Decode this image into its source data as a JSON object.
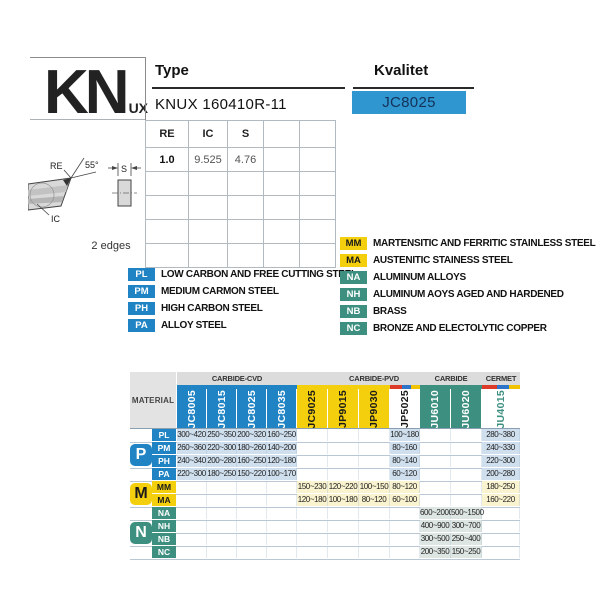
{
  "header": {
    "logo": "KN",
    "logo_sub": "UX",
    "type_label": "Type",
    "type_value": "KNUX 160410R-11",
    "kvalitet_label": "Kvalitet",
    "kvalitet_value": "JC8025"
  },
  "diagram": {
    "re_label": "RE",
    "angle_label": "55°",
    "s_label": "S",
    "ic_label": "IC",
    "edges_label": "2 edges"
  },
  "spec_table": {
    "headers": [
      "RE",
      "IC",
      "S",
      "",
      ""
    ],
    "values": [
      "1.0",
      "9.525",
      "4.76",
      "",
      ""
    ]
  },
  "legend_left": [
    {
      "code": "PL",
      "color": "blue",
      "fg": "#ffffff",
      "label": "LOW CARBON AND FREE CUTTING STEEL"
    },
    {
      "code": "PM",
      "color": "blue",
      "fg": "#ffffff",
      "label": "MEDIUM CARMON STEEL"
    },
    {
      "code": "PH",
      "color": "blue",
      "fg": "#ffffff",
      "label": "HIGH CARBON STEEL"
    },
    {
      "code": "PA",
      "color": "blue",
      "fg": "#ffffff",
      "label": "ALLOY STEEL"
    }
  ],
  "legend_right": [
    {
      "code": "MM",
      "color": "yellow",
      "fg": "#1a1a1a",
      "label": "MARTENSITIC AND FERRITIC STAINLESS STEEL"
    },
    {
      "code": "MA",
      "color": "yellow",
      "fg": "#1a1a1a",
      "label": "AUSTENITIC STAINESS STEEL"
    },
    {
      "code": "NA",
      "color": "teal",
      "fg": "#ffffff",
      "label": "ALUMINUM ALLOYS"
    },
    {
      "code": "NH",
      "color": "teal",
      "fg": "#ffffff",
      "label": "ALUMINUM AOYS AGED AND HARDENED"
    },
    {
      "code": "NB",
      "color": "teal",
      "fg": "#ffffff",
      "label": "BRASS"
    },
    {
      "code": "NC",
      "color": "teal",
      "fg": "#ffffff",
      "label": "BRONZE AND ELECTOLYTIC COPPER"
    }
  ],
  "colors": {
    "blue": "#1f83c4",
    "box_blue": "#2f96cf",
    "kvalitet_text": "#15325a",
    "yellow": "#f3cf0e",
    "teal": "#3d9080",
    "pale_blue": "#cfdfee",
    "pale_yellow": "#faf3cf",
    "pale_teal": "#dde6e3",
    "band_gray": "#dcdcdc",
    "material_gray": "#e3e3e3",
    "stripe_red": "#dd3b2a",
    "stripe_blue": "#2e74c9",
    "stripe_yellow": "#f2c300",
    "grid": "#b9c8d4"
  },
  "main_table": {
    "material_label": "MATERIAL",
    "bands": [
      {
        "label": "CARBIDE-CVD",
        "from": 0,
        "to": 3
      },
      {
        "label": "CARBIDE-PVD",
        "from": 5,
        "to": 7
      },
      {
        "label": "CARBIDE",
        "from": 8,
        "to": 9
      },
      {
        "label": "CERMET",
        "from": 10,
        "to": 10
      }
    ],
    "columns": [
      {
        "name": "JC8005",
        "bg": "blue",
        "fg": "#ffffff",
        "stripe": "blue"
      },
      {
        "name": "JC8015",
        "bg": "blue",
        "fg": "#ffffff",
        "stripe": "blue"
      },
      {
        "name": "JC8025",
        "bg": "blue",
        "fg": "#ffffff",
        "stripe": "blue"
      },
      {
        "name": "JC8035",
        "bg": "blue",
        "fg": "#ffffff",
        "stripe": "blue"
      },
      {
        "name": "JC9025",
        "bg": "yellow",
        "fg": "#1a1a1a",
        "stripe": "yellow"
      },
      {
        "name": "JP9015",
        "bg": "yellow",
        "fg": "#1a1a1a",
        "stripe": "yellow"
      },
      {
        "name": "JP9030",
        "bg": "yellow",
        "fg": "#1a1a1a",
        "stripe": "yellow"
      },
      {
        "name": "JP5025",
        "bg": "white",
        "fg": "#1a1a1a",
        "stripe": "rgb"
      },
      {
        "name": "JU6010",
        "bg": "teal",
        "fg": "#ffffff",
        "stripe": "teal"
      },
      {
        "name": "JU6020",
        "bg": "teal",
        "fg": "#ffffff",
        "stripe": "teal"
      },
      {
        "name": "JU4015",
        "bg": "white",
        "fg": "teal",
        "stripe": "rgb"
      }
    ],
    "row_groups": [
      {
        "letter": "P",
        "color": "blue",
        "fg": "#ffffff"
      },
      {
        "letter": "M",
        "color": "yellow",
        "fg": "#1a1a1a"
      },
      {
        "letter": "N",
        "color": "teal",
        "fg": "#ffffff"
      }
    ],
    "rows": [
      {
        "code": "PL",
        "group": "P",
        "values": [
          "300~420",
          "250~350",
          "200~320",
          "160~250",
          "",
          "",
          "",
          "100~180",
          "",
          "",
          "280~380"
        ]
      },
      {
        "code": "PM",
        "group": "P",
        "values": [
          "260~360",
          "220~300",
          "180~260",
          "140~200",
          "",
          "",
          "",
          "80~160",
          "",
          "",
          "240~330"
        ]
      },
      {
        "code": "PH",
        "group": "P",
        "values": [
          "240~340",
          "200~280",
          "160~250",
          "120~180",
          "",
          "",
          "",
          "80~140",
          "",
          "",
          "220~300"
        ]
      },
      {
        "code": "PA",
        "group": "P",
        "values": [
          "220~300",
          "180~250",
          "150~220",
          "100~170",
          "",
          "",
          "",
          "60~120",
          "",
          "",
          "200~280"
        ]
      },
      {
        "code": "MM",
        "group": "M",
        "values": [
          "",
          "",
          "",
          "",
          "150~230",
          "120~220",
          "100~150",
          "80~120",
          "",
          "",
          "180~250"
        ]
      },
      {
        "code": "MA",
        "group": "M",
        "values": [
          "",
          "",
          "",
          "",
          "120~180",
          "100~180",
          "80~120",
          "60~100",
          "",
          "",
          "160~220"
        ]
      },
      {
        "code": "NA",
        "group": "N",
        "values": [
          "",
          "",
          "",
          "",
          "",
          "",
          "",
          "",
          "600~2000",
          "500~1500",
          ""
        ]
      },
      {
        "code": "NH",
        "group": "N",
        "values": [
          "",
          "",
          "",
          "",
          "",
          "",
          "",
          "",
          "400~900",
          "300~700",
          ""
        ]
      },
      {
        "code": "NB",
        "group": "N",
        "values": [
          "",
          "",
          "",
          "",
          "",
          "",
          "",
          "",
          "300~500",
          "250~400",
          ""
        ]
      },
      {
        "code": "NC",
        "group": "N",
        "values": [
          "",
          "",
          "",
          "",
          "",
          "",
          "",
          "",
          "200~350",
          "150~250",
          ""
        ]
      }
    ]
  }
}
